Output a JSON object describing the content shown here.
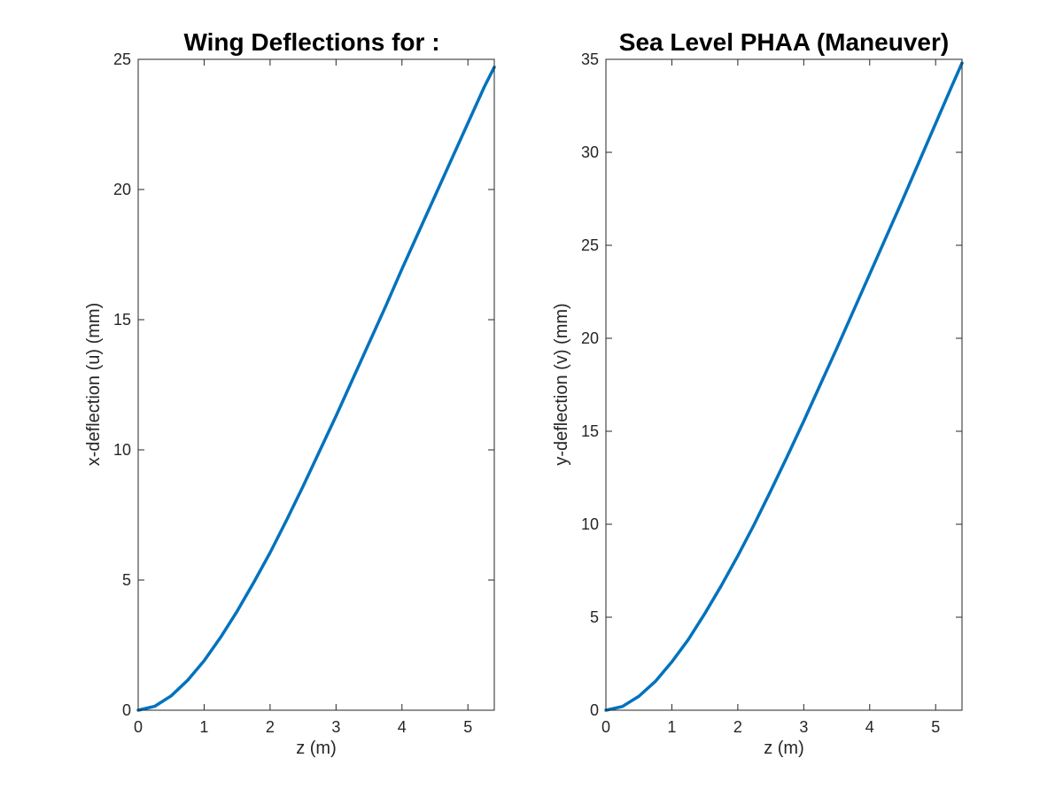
{
  "colors": {
    "series": "#0072BD",
    "axis": "#262626",
    "background": "#ffffff"
  },
  "chart_data": [
    {
      "type": "line",
      "title": "Wing Deflections for :",
      "xlabel": "z (m)",
      "ylabel": "x-deflection (u) (mm)",
      "xlim": [
        0,
        5.4
      ],
      "ylim": [
        0,
        25
      ],
      "xticks": [
        0,
        1,
        2,
        3,
        4,
        5
      ],
      "yticks": [
        0,
        5,
        10,
        15,
        20,
        25
      ],
      "grid": false,
      "series": [
        {
          "x": [
            0,
            0.25,
            0.5,
            0.75,
            1.0,
            1.25,
            1.5,
            1.75,
            2.0,
            2.25,
            2.5,
            2.75,
            3.0,
            3.25,
            3.5,
            3.75,
            4.0,
            4.25,
            4.5,
            4.75,
            5.0,
            5.25,
            5.4
          ],
          "values": [
            0,
            0.15,
            0.55,
            1.15,
            1.9,
            2.8,
            3.8,
            4.9,
            6.05,
            7.3,
            8.6,
            9.95,
            11.3,
            12.7,
            14.1,
            15.5,
            16.95,
            18.35,
            19.75,
            21.15,
            22.55,
            23.95,
            24.7
          ]
        }
      ]
    },
    {
      "type": "line",
      "title": "Sea Level PHAA (Maneuver)",
      "xlabel": "z (m)",
      "ylabel": "y-deflection (v) (mm)",
      "xlim": [
        0,
        5.4
      ],
      "ylim": [
        0,
        35
      ],
      "xticks": [
        0,
        1,
        2,
        3,
        4,
        5
      ],
      "yticks": [
        0,
        5,
        10,
        15,
        20,
        25,
        30,
        35
      ],
      "grid": false,
      "series": [
        {
          "x": [
            0,
            0.25,
            0.5,
            0.75,
            1.0,
            1.25,
            1.5,
            1.75,
            2.0,
            2.25,
            2.5,
            2.75,
            3.0,
            3.25,
            3.5,
            3.75,
            4.0,
            4.25,
            4.5,
            4.75,
            5.0,
            5.25,
            5.4
          ],
          "values": [
            0,
            0.2,
            0.75,
            1.55,
            2.6,
            3.8,
            5.2,
            6.7,
            8.3,
            10.0,
            11.8,
            13.65,
            15.55,
            17.5,
            19.45,
            21.45,
            23.45,
            25.45,
            27.45,
            29.5,
            31.55,
            33.6,
            34.8
          ]
        }
      ]
    }
  ]
}
